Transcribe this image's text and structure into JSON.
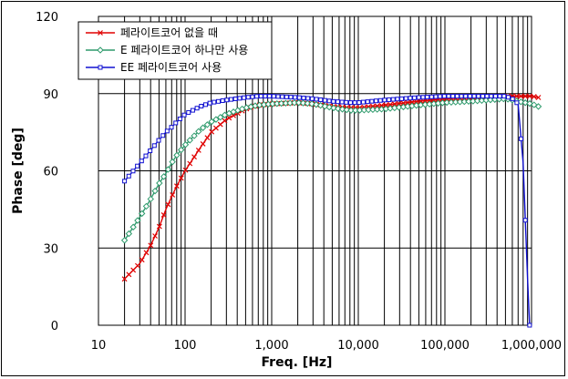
{
  "chart_data": {
    "type": "line",
    "xlabel": "Freq. [Hz]",
    "ylabel": "Phase [deg]",
    "xscale": "log",
    "xlim": [
      10,
      1000000
    ],
    "ylim": [
      0,
      120
    ],
    "xticks": [
      {
        "value": 10,
        "label": "10"
      },
      {
        "value": 100,
        "label": "100"
      },
      {
        "value": 1000,
        "label": "1,000"
      },
      {
        "value": 10000,
        "label": "10,000"
      },
      {
        "value": 100000,
        "label": "100,000"
      },
      {
        "value": 1000000,
        "label": "1,000,000"
      }
    ],
    "yticks": [
      {
        "value": 0,
        "label": "0"
      },
      {
        "value": 30,
        "label": "30"
      },
      {
        "value": 60,
        "label": "60"
      },
      {
        "value": 90,
        "label": "90"
      },
      {
        "value": 120,
        "label": "120"
      }
    ],
    "grid": true,
    "legend_position": "top-left",
    "series": [
      {
        "name": "페라이트코어 없을 때",
        "color": "#e00000",
        "marker": "x",
        "points": [
          [
            20,
            18
          ],
          [
            30,
            24
          ],
          [
            40,
            31
          ],
          [
            50,
            38
          ],
          [
            60,
            45
          ],
          [
            70,
            50
          ],
          [
            80,
            54
          ],
          [
            100,
            60
          ],
          [
            150,
            69
          ],
          [
            200,
            75
          ],
          [
            300,
            80
          ],
          [
            500,
            84
          ],
          [
            700,
            85.5
          ],
          [
            1000,
            86
          ],
          [
            2000,
            86.5
          ],
          [
            3000,
            86
          ],
          [
            5000,
            85
          ],
          [
            8000,
            84.5
          ],
          [
            10000,
            84.5
          ],
          [
            20000,
            85.5
          ],
          [
            50000,
            87
          ],
          [
            100000,
            88
          ],
          [
            200000,
            88.5
          ],
          [
            500000,
            89
          ],
          [
            800000,
            89
          ],
          [
            1000000,
            89
          ],
          [
            1200000,
            88.5
          ]
        ]
      },
      {
        "name": "E 페라이트코어 하나만 사용",
        "color": "#2e9a6c",
        "marker": "diamond",
        "points": [
          [
            20,
            33
          ],
          [
            30,
            42
          ],
          [
            40,
            49
          ],
          [
            50,
            55
          ],
          [
            60,
            59
          ],
          [
            70,
            63
          ],
          [
            80,
            66
          ],
          [
            100,
            70
          ],
          [
            150,
            76
          ],
          [
            200,
            79
          ],
          [
            300,
            82
          ],
          [
            500,
            84.5
          ],
          [
            700,
            85.5
          ],
          [
            1000,
            86
          ],
          [
            2000,
            86.5
          ],
          [
            3000,
            86
          ],
          [
            5000,
            84.5
          ],
          [
            8000,
            83.5
          ],
          [
            10000,
            83.5
          ],
          [
            20000,
            84
          ],
          [
            50000,
            85.5
          ],
          [
            100000,
            86.5
          ],
          [
            200000,
            87
          ],
          [
            500000,
            88
          ],
          [
            700000,
            87
          ],
          [
            1000000,
            86
          ],
          [
            1200000,
            85
          ]
        ]
      },
      {
        "name": "EE 페라이트코어 사용",
        "color": "#1010d0",
        "marker": "square",
        "points": [
          [
            20,
            56
          ],
          [
            30,
            63
          ],
          [
            40,
            68
          ],
          [
            50,
            72
          ],
          [
            60,
            75
          ],
          [
            70,
            77
          ],
          [
            80,
            79
          ],
          [
            100,
            82
          ],
          [
            150,
            85
          ],
          [
            200,
            86.5
          ],
          [
            300,
            87.5
          ],
          [
            500,
            88.5
          ],
          [
            700,
            89
          ],
          [
            1000,
            89
          ],
          [
            2000,
            88.5
          ],
          [
            3000,
            88
          ],
          [
            5000,
            87
          ],
          [
            8000,
            86.5
          ],
          [
            10000,
            86.5
          ],
          [
            20000,
            87.5
          ],
          [
            50000,
            88.5
          ],
          [
            100000,
            89
          ],
          [
            200000,
            89
          ],
          [
            400000,
            89
          ],
          [
            500000,
            89
          ],
          [
            600000,
            88
          ],
          [
            700000,
            86
          ],
          [
            800000,
            63
          ],
          [
            850000,
            40
          ],
          [
            900000,
            18
          ],
          [
            950000,
            0
          ]
        ]
      }
    ]
  }
}
